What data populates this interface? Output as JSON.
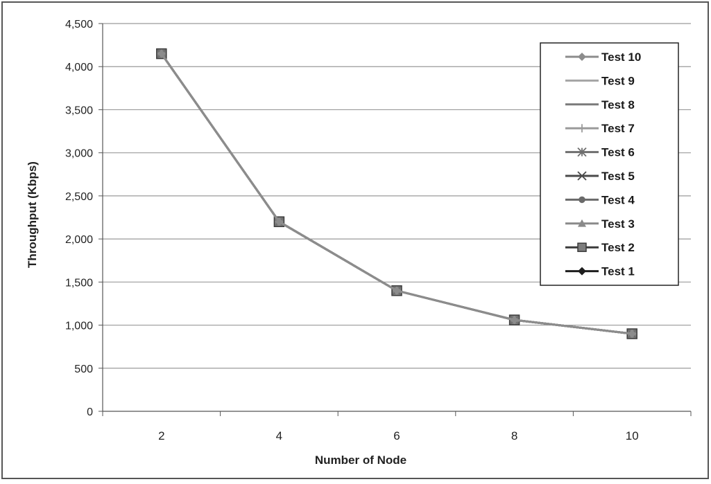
{
  "chart_data": {
    "type": "line",
    "x": [
      2,
      4,
      6,
      8,
      10
    ],
    "xlabel": "Number of Node",
    "ylabel": "Throughput (Kbps)",
    "ylim": [
      0,
      4500
    ],
    "yticks": [
      "0",
      "500",
      "1,000",
      "1,500",
      "2,000",
      "2,500",
      "3,000",
      "3,500",
      "4,000",
      "4,500"
    ],
    "xticks": [
      "2",
      "4",
      "6",
      "8",
      "10"
    ],
    "grid": "horizontal",
    "legend_position": "top-right",
    "series": [
      {
        "name": "Test 10",
        "marker": "diamond",
        "color": "#8c8c8c",
        "values": [
          4150,
          2200,
          1400,
          1060,
          900
        ]
      },
      {
        "name": "Test 9",
        "marker": "none",
        "color": "#a5a5a5",
        "values": [
          4150,
          2200,
          1400,
          1060,
          900
        ]
      },
      {
        "name": "Test 8",
        "marker": "none",
        "color": "#7a7a7a",
        "values": [
          4150,
          2200,
          1400,
          1060,
          900
        ]
      },
      {
        "name": "Test 7",
        "marker": "plus",
        "color": "#9a9a9a",
        "values": [
          4150,
          2200,
          1400,
          1060,
          900
        ]
      },
      {
        "name": "Test 6",
        "marker": "star",
        "color": "#6e6e6e",
        "values": [
          4150,
          2200,
          1400,
          1060,
          900
        ]
      },
      {
        "name": "Test 5",
        "marker": "x",
        "color": "#4a4a4a",
        "values": [
          4150,
          2200,
          1400,
          1060,
          900
        ]
      },
      {
        "name": "Test 4",
        "marker": "circle",
        "color": "#6a6a6a",
        "values": [
          4150,
          2200,
          1400,
          1060,
          900
        ]
      },
      {
        "name": "Test 3",
        "marker": "triangle",
        "color": "#8a8a8a",
        "values": [
          4150,
          2200,
          1400,
          1060,
          900
        ]
      },
      {
        "name": "Test 2",
        "marker": "square",
        "color": "#3a3a3a",
        "values": [
          4150,
          2200,
          1400,
          1060,
          900
        ]
      },
      {
        "name": "Test 1",
        "marker": "diamond",
        "color": "#1e1e1e",
        "values": [
          4150,
          2200,
          1400,
          1060,
          900
        ]
      }
    ]
  }
}
